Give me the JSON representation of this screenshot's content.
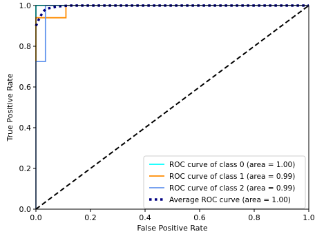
{
  "chart_data": {
    "type": "line",
    "xlabel": "False Positive Rate",
    "ylabel": "True Positive Rate",
    "xlim": [
      0.0,
      1.0
    ],
    "ylim": [
      0.0,
      1.0
    ],
    "x_ticks": [
      "0.0",
      "0.2",
      "0.4",
      "0.6",
      "0.8",
      "1.0"
    ],
    "y_ticks": [
      "0.0",
      "0.2",
      "0.4",
      "0.6",
      "0.8",
      "1.0"
    ],
    "grid": false,
    "legend_position": "lower-right",
    "series": [
      {
        "name": "ROC curve of class 0 (area = 1.00)",
        "color": "#00ffff",
        "style": "solid",
        "x": [
          0.0,
          0.0,
          0.0,
          0.03,
          1.0
        ],
        "y": [
          0.0,
          0.94,
          1.0,
          1.0,
          1.0
        ]
      },
      {
        "name": "ROC curve of class 1 (area = 0.99)",
        "color": "#ff8c00",
        "style": "solid",
        "x": [
          0.0,
          0.0,
          0.0,
          0.11,
          0.11,
          1.0
        ],
        "y": [
          0.0,
          0.72,
          0.94,
          0.94,
          1.0,
          1.0
        ]
      },
      {
        "name": "ROC curve of class 2 (area = 0.99)",
        "color": "#6495ed",
        "style": "solid",
        "x": [
          0.0,
          0.0,
          0.0,
          0.035,
          0.035,
          1.0
        ],
        "y": [
          0.0,
          0.1,
          0.725,
          0.725,
          1.0,
          1.0
        ]
      },
      {
        "name": "Average ROC curve (area = 1.00)",
        "color": "#000080",
        "style": "dotted",
        "x": [
          0.0,
          0.005,
          0.01,
          0.02,
          0.03,
          0.04,
          0.06,
          0.08,
          0.1,
          0.12,
          0.15,
          0.2,
          0.3,
          0.5,
          0.7,
          1.0
        ],
        "y": [
          0.9,
          0.915,
          0.93,
          0.955,
          0.975,
          0.985,
          0.99,
          0.995,
          0.998,
          1.0,
          1.0,
          1.0,
          1.0,
          1.0,
          1.0,
          1.0
        ]
      },
      {
        "name": "",
        "color": "#000000",
        "style": "dashed",
        "x": [
          0.0,
          1.0
        ],
        "y": [
          0.0,
          1.0
        ]
      }
    ]
  }
}
